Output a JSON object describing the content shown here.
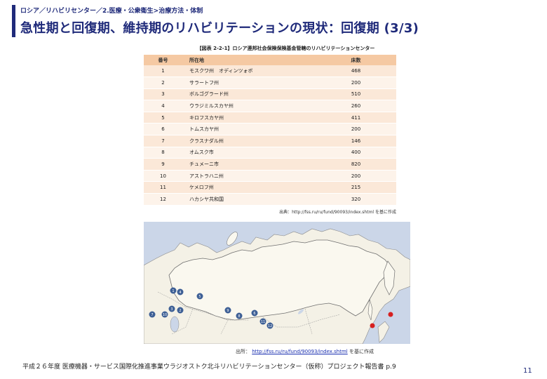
{
  "header": {
    "breadcrumb": "ロシア／リハビリセンター／2.医療・公衆衛生>治療方法・体制",
    "title": "急性期と回復期、維持期のリハビリテーションの現状：回復期 (3/3)"
  },
  "table": {
    "title": "【図表 2-2-1】ロシア連邦社会保険保険基金管轄のリハビリテーションセンター",
    "columns": [
      "番号",
      "所在地",
      "床数"
    ],
    "rows": [
      {
        "num": "1",
        "location": "モスクワ州　オディンツォボ",
        "beds": "468"
      },
      {
        "num": "2",
        "location": "サラートフ州",
        "beds": "200"
      },
      {
        "num": "3",
        "location": "ボルゴグラード州",
        "beds": "510"
      },
      {
        "num": "4",
        "location": "ウラジミルスカヤ州",
        "beds": "260"
      },
      {
        "num": "5",
        "location": "キロフスカヤ州",
        "beds": "411"
      },
      {
        "num": "6",
        "location": "トムスカヤ州",
        "beds": "200"
      },
      {
        "num": "7",
        "location": "クラスナダル州",
        "beds": "146"
      },
      {
        "num": "8",
        "location": "オムスク市",
        "beds": "400"
      },
      {
        "num": "9",
        "location": "チュメーニ市",
        "beds": "820"
      },
      {
        "num": "10",
        "location": "アストラハニ州",
        "beds": "200"
      },
      {
        "num": "11",
        "location": "ケメロフ州",
        "beds": "215"
      },
      {
        "num": "12",
        "location": "ハカシヤ共和国",
        "beds": "320"
      }
    ],
    "source": "出典：http://fss.ru/ru/fund/90093/index.shtml を基に作成"
  },
  "map": {
    "source_prefix": "出所：",
    "source_link": "http://fss.ru/ru/fund/90093/index.shtml",
    "source_suffix": "を基に作成",
    "markers": [
      "1",
      "2",
      "3",
      "4",
      "5",
      "6",
      "7",
      "8",
      "9",
      "10",
      "11",
      "12"
    ],
    "land_color": "#f4f1e6",
    "sea_color": "#cbd6e8",
    "border_color": "#9a9a9a",
    "marker_color": "#3d5f95",
    "highlight_color": "#d62020"
  },
  "footer": {
    "note": "平成２６年度 医療機器・サービス国際化推進事業ウラジオストク北斗リハビリテーションセンター（仮称）プロジェクト報告書 p.9",
    "page_number": "11"
  }
}
